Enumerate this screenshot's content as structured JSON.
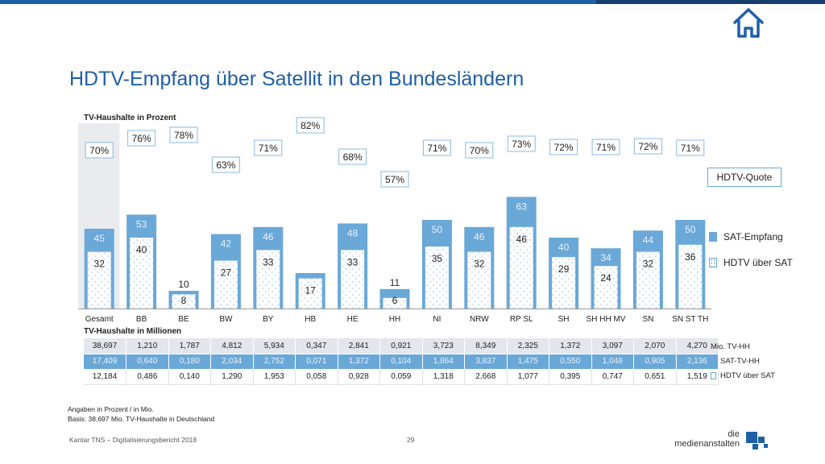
{
  "title": "HDTV-Empfang über Satellit in den Bundesländern",
  "subtitle_percent": "TV-Haushalte in Prozent",
  "subtitle_millions": "TV-Haushalte in Millionen",
  "colors": {
    "accent": "#1f5fa8",
    "bar": "#6aa8d8",
    "gesamt_bg": "#e9ebee"
  },
  "icons": {
    "home": "home-icon"
  },
  "chart_data": {
    "type": "bar",
    "categories": [
      "Gesamt",
      "BB",
      "BE",
      "BW",
      "BY",
      "HB",
      "HE",
      "HH",
      "NI",
      "NRW",
      "RP SL",
      "SH",
      "SH HH MV",
      "SN",
      "SN ST TH"
    ],
    "series": [
      {
        "name": "SAT-Empfang",
        "values": [
          45,
          53,
          10,
          42,
          46,
          20,
          48,
          11,
          50,
          46,
          63,
          40,
          34,
          44,
          50
        ]
      },
      {
        "name": "HDTV über SAT",
        "values": [
          32,
          40,
          8,
          27,
          33,
          17,
          33,
          6,
          35,
          32,
          46,
          29,
          24,
          32,
          36
        ]
      },
      {
        "name": "HDTV-Quote",
        "values": [
          "70%",
          "76%",
          "78%",
          "63%",
          "71%",
          "82%",
          "68%",
          "57%",
          "71%",
          "70%",
          "73%",
          "72%",
          "71%",
          "72%",
          "71%"
        ]
      }
    ],
    "ylim": [
      0,
      100
    ]
  },
  "legend": {
    "quote": "HDTV-Quote",
    "sat": "SAT-Empfang",
    "hdtv": "HDTV über SAT"
  },
  "table": {
    "rows": [
      {
        "label": "Mio. TV-HH",
        "values": [
          "38,697",
          "1,210",
          "1,787",
          "4,812",
          "5,934",
          "0,347",
          "2,841",
          "0,921",
          "3,723",
          "8,349",
          "2,325",
          "1,372",
          "3,097",
          "2,070",
          "4,270"
        ]
      },
      {
        "label": "SAT-TV-HH",
        "values": [
          "17,409",
          "0,640",
          "0,180",
          "2,034",
          "2,752",
          "0,071",
          "1,372",
          "0,104",
          "1,864",
          "3,837",
          "1,475",
          "0,550",
          "1,048",
          "0,905",
          "2,136"
        ]
      },
      {
        "label": "HDTV über SAT",
        "values": [
          "12,184",
          "0,486",
          "0,140",
          "1,290",
          "1,953",
          "0,058",
          "0,928",
          "0,059",
          "1,318",
          "2,668",
          "1,077",
          "0,395",
          "0,747",
          "0,651",
          "1,519"
        ]
      }
    ]
  },
  "notes": {
    "line1": "Angaben in Prozent / in Mio.",
    "line2": "Basis: 38,697 Mio. TV-Haushalte in Deutschland"
  },
  "footer": {
    "source": "Kantar TNS – Digitalisierungsbericht 2018",
    "page": "29"
  },
  "logo": {
    "line1": "die",
    "line2": "medienanstalten"
  }
}
